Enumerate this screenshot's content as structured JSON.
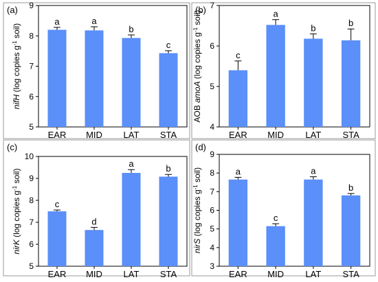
{
  "figure": {
    "colors": {
      "bar": "#5b8ff9",
      "axis": "#000000",
      "error": "#000000"
    }
  },
  "chart_data": [
    {
      "type": "bar",
      "panel_label": "(a)",
      "ylabel_parts": [
        {
          "text": "nifH",
          "italic": true
        },
        {
          "text": " (log copies g"
        },
        {
          "text": "-1",
          "sup": true
        },
        {
          "text": " soil)"
        }
      ],
      "categories": [
        "EAR",
        "MID",
        "LAT",
        "STA"
      ],
      "values": [
        8.2,
        8.18,
        7.93,
        7.43
      ],
      "errors": [
        0.08,
        0.12,
        0.1,
        0.08
      ],
      "letters": [
        "a",
        "a",
        "b",
        "c"
      ],
      "ylim": [
        5,
        9
      ],
      "yticks": [
        "5",
        "6",
        "7",
        "8",
        "9"
      ]
    },
    {
      "type": "bar",
      "panel_label": "(b)",
      "ylabel_parts": [
        {
          "text": "AOB "
        },
        {
          "text": "amoA",
          "italic": true
        },
        {
          "text": " (log copies g"
        },
        {
          "text": "-1",
          "sup": true
        },
        {
          "text": " soil)"
        }
      ],
      "categories": [
        "EAR",
        "MID",
        "LAT",
        "STA"
      ],
      "values": [
        5.4,
        6.52,
        6.18,
        6.14
      ],
      "errors": [
        0.23,
        0.13,
        0.12,
        0.28
      ],
      "letters": [
        "c",
        "a",
        "b",
        "b"
      ],
      "ylim": [
        4,
        7
      ],
      "yticks": [
        "4",
        "5",
        "6",
        "7"
      ]
    },
    {
      "type": "bar",
      "panel_label": "(c)",
      "ylabel_parts": [
        {
          "text": "nirK",
          "italic": true
        },
        {
          "text": " (log copies g"
        },
        {
          "text": "-1",
          "sup": true
        },
        {
          "text": " soil)"
        }
      ],
      "categories": [
        "EAR",
        "MID",
        "LAT",
        "STA"
      ],
      "values": [
        7.5,
        6.65,
        9.25,
        9.08
      ],
      "errors": [
        0.06,
        0.12,
        0.15,
        0.1
      ],
      "letters": [
        "c",
        "d",
        "a",
        "b"
      ],
      "ylim": [
        5,
        10
      ],
      "yticks": [
        "5",
        "6",
        "7",
        "8",
        "9",
        "10"
      ]
    },
    {
      "type": "bar",
      "panel_label": "(d)",
      "ylabel_parts": [
        {
          "text": "nirS",
          "italic": true
        },
        {
          "text": " (log copies g"
        },
        {
          "text": "-1",
          "sup": true
        },
        {
          "text": " soil)"
        }
      ],
      "categories": [
        "EAR",
        "MID",
        "LAT",
        "STA"
      ],
      "values": [
        7.65,
        5.15,
        7.65,
        6.8
      ],
      "errors": [
        0.12,
        0.13,
        0.15,
        0.1
      ],
      "letters": [
        "a",
        "c",
        "a",
        "b"
      ],
      "ylim": [
        3,
        9
      ],
      "yticks": [
        "3",
        "4",
        "5",
        "6",
        "7",
        "8",
        "9"
      ]
    }
  ]
}
